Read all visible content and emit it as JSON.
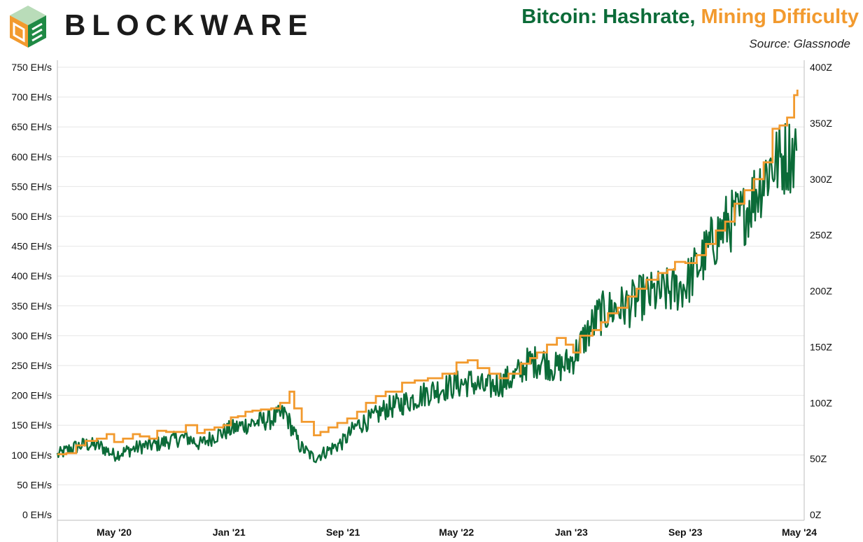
{
  "brand": {
    "name": "BLOCKWARE"
  },
  "header": {
    "title_part1": "Bitcoin: Hashrate, ",
    "title_part2": "Mining Difficulty",
    "source": "Source: Glassnode"
  },
  "colors": {
    "hashrate": "#0b6b38",
    "difficulty": "#f29a2e",
    "logo_orange": "#f29a2e",
    "logo_green": "#1f8a45"
  },
  "chart_data": {
    "type": "line",
    "title": "Bitcoin: Hashrate, Mining Difficulty",
    "grid": "horizontal",
    "x_range": [
      "2020-01-01",
      "2024-05-01"
    ],
    "x_ticks": [
      {
        "label": "May '20",
        "date": "2020-05-01"
      },
      {
        "label": "Jan '21",
        "date": "2021-01-01"
      },
      {
        "label": "Sep '21",
        "date": "2021-09-01"
      },
      {
        "label": "May '22",
        "date": "2022-05-01"
      },
      {
        "label": "Jan '23",
        "date": "2023-01-01"
      },
      {
        "label": "Sep '23",
        "date": "2023-09-01"
      },
      {
        "label": "May '24",
        "date": "2024-05-01"
      }
    ],
    "y_left": {
      "ylim": [
        0,
        750
      ],
      "unit": "EH/s",
      "ticks": [
        {
          "value": 0,
          "label": "0 EH/s"
        },
        {
          "value": 50,
          "label": "50 EH/s"
        },
        {
          "value": 100,
          "label": "100 EH/s"
        },
        {
          "value": 150,
          "label": "150 EH/s"
        },
        {
          "value": 200,
          "label": "200 EH/s"
        },
        {
          "value": 250,
          "label": "250 EH/s"
        },
        {
          "value": 300,
          "label": "300 EH/s"
        },
        {
          "value": 350,
          "label": "350 EH/s"
        },
        {
          "value": 400,
          "label": "400 EH/s"
        },
        {
          "value": 450,
          "label": "450 EH/s"
        },
        {
          "value": 500,
          "label": "500 EH/s"
        },
        {
          "value": 550,
          "label": "550 EH/s"
        },
        {
          "value": 600,
          "label": "600 EH/s"
        },
        {
          "value": 650,
          "label": "650 EH/s"
        },
        {
          "value": 700,
          "label": "700 EH/s"
        },
        {
          "value": 750,
          "label": "750 EH/s"
        }
      ]
    },
    "y_right": {
      "ylim": [
        0,
        400
      ],
      "unit": "Z",
      "ticks": [
        {
          "value": 0,
          "label": "0Z"
        },
        {
          "value": 50,
          "label": "50Z"
        },
        {
          "value": 100,
          "label": "100Z"
        },
        {
          "value": 150,
          "label": "150Z"
        },
        {
          "value": 200,
          "label": "200Z"
        },
        {
          "value": 250,
          "label": "250Z"
        },
        {
          "value": 300,
          "label": "300Z"
        },
        {
          "value": 350,
          "label": "350Z"
        },
        {
          "value": 400,
          "label": "400Z"
        }
      ]
    },
    "series": [
      {
        "name": "Hashrate",
        "axis": "left",
        "color": "#0b6b38",
        "points": [
          [
            "2020-01-01",
            100
          ],
          [
            "2020-02-01",
            112
          ],
          [
            "2020-03-01",
            118
          ],
          [
            "2020-04-01",
            115
          ],
          [
            "2020-05-01",
            100
          ],
          [
            "2020-06-01",
            108
          ],
          [
            "2020-07-01",
            115
          ],
          [
            "2020-08-01",
            118
          ],
          [
            "2020-09-01",
            125
          ],
          [
            "2020-10-01",
            130
          ],
          [
            "2020-11-01",
            118
          ],
          [
            "2020-12-01",
            132
          ],
          [
            "2021-01-01",
            142
          ],
          [
            "2021-02-01",
            150
          ],
          [
            "2021-03-01",
            155
          ],
          [
            "2021-04-01",
            160
          ],
          [
            "2021-05-01",
            170
          ],
          [
            "2021-06-01",
            115
          ],
          [
            "2021-07-01",
            95
          ],
          [
            "2021-08-01",
            108
          ],
          [
            "2021-09-01",
            122
          ],
          [
            "2021-10-01",
            150
          ],
          [
            "2021-11-01",
            160
          ],
          [
            "2021-12-01",
            178
          ],
          [
            "2022-01-01",
            185
          ],
          [
            "2022-02-01",
            195
          ],
          [
            "2022-03-01",
            205
          ],
          [
            "2022-04-01",
            212
          ],
          [
            "2022-05-01",
            218
          ],
          [
            "2022-06-01",
            222
          ],
          [
            "2022-07-01",
            212
          ],
          [
            "2022-08-01",
            220
          ],
          [
            "2022-09-01",
            230
          ],
          [
            "2022-10-01",
            255
          ],
          [
            "2022-11-01",
            258
          ],
          [
            "2022-12-01",
            245
          ],
          [
            "2023-01-01",
            258
          ],
          [
            "2023-02-01",
            300
          ],
          [
            "2023-03-01",
            335
          ],
          [
            "2023-04-01",
            345
          ],
          [
            "2023-05-01",
            350
          ],
          [
            "2023-06-01",
            365
          ],
          [
            "2023-07-01",
            370
          ],
          [
            "2023-08-01",
            375
          ],
          [
            "2023-09-01",
            385
          ],
          [
            "2023-10-01",
            420
          ],
          [
            "2023-11-01",
            460
          ],
          [
            "2023-12-01",
            490
          ],
          [
            "2024-01-01",
            500
          ],
          [
            "2024-02-01",
            545
          ],
          [
            "2024-03-01",
            585
          ],
          [
            "2024-04-01",
            600
          ],
          [
            "2024-04-25",
            610
          ]
        ]
      },
      {
        "name": "Mining Difficulty",
        "axis": "right",
        "color": "#f29a2e",
        "points": [
          [
            "2020-01-01",
            54
          ],
          [
            "2020-01-20",
            55
          ],
          [
            "2020-02-10",
            62
          ],
          [
            "2020-03-01",
            66
          ],
          [
            "2020-03-25",
            68
          ],
          [
            "2020-04-15",
            72
          ],
          [
            "2020-05-01",
            65
          ],
          [
            "2020-05-20",
            68
          ],
          [
            "2020-06-10",
            72
          ],
          [
            "2020-06-25",
            70
          ],
          [
            "2020-07-15",
            68
          ],
          [
            "2020-08-01",
            75
          ],
          [
            "2020-08-20",
            74
          ],
          [
            "2020-09-10",
            74
          ],
          [
            "2020-10-01",
            80
          ],
          [
            "2020-10-25",
            73
          ],
          [
            "2020-11-10",
            76
          ],
          [
            "2020-12-01",
            78
          ],
          [
            "2020-12-20",
            80
          ],
          [
            "2021-01-05",
            87
          ],
          [
            "2021-01-20",
            88
          ],
          [
            "2021-02-05",
            92
          ],
          [
            "2021-02-20",
            93
          ],
          [
            "2021-03-10",
            94
          ],
          [
            "2021-04-01",
            95
          ],
          [
            "2021-04-20",
            100
          ],
          [
            "2021-05-10",
            110
          ],
          [
            "2021-05-20",
            95
          ],
          [
            "2021-06-05",
            83
          ],
          [
            "2021-07-01",
            71
          ],
          [
            "2021-07-15",
            74
          ],
          [
            "2021-08-01",
            78
          ],
          [
            "2021-08-20",
            82
          ],
          [
            "2021-09-10",
            86
          ],
          [
            "2021-10-01",
            92
          ],
          [
            "2021-10-20",
            100
          ],
          [
            "2021-11-10",
            106
          ],
          [
            "2021-12-01",
            110
          ],
          [
            "2022-01-05",
            118
          ],
          [
            "2022-02-01",
            120
          ],
          [
            "2022-03-01",
            122
          ],
          [
            "2022-04-01",
            126
          ],
          [
            "2022-05-01",
            136
          ],
          [
            "2022-05-25",
            138
          ],
          [
            "2022-06-15",
            131
          ],
          [
            "2022-07-10",
            126
          ],
          [
            "2022-08-01",
            122
          ],
          [
            "2022-08-20",
            126
          ],
          [
            "2022-09-15",
            135
          ],
          [
            "2022-10-05",
            140
          ],
          [
            "2022-10-20",
            145
          ],
          [
            "2022-11-10",
            152
          ],
          [
            "2022-12-01",
            158
          ],
          [
            "2022-12-20",
            152
          ],
          [
            "2023-01-05",
            145
          ],
          [
            "2023-01-20",
            160
          ],
          [
            "2023-02-15",
            165
          ],
          [
            "2023-03-05",
            172
          ],
          [
            "2023-03-20",
            180
          ],
          [
            "2023-04-10",
            185
          ],
          [
            "2023-05-01",
            195
          ],
          [
            "2023-05-20",
            202
          ],
          [
            "2023-06-10",
            210
          ],
          [
            "2023-07-05",
            216
          ],
          [
            "2023-07-25",
            219
          ],
          [
            "2023-08-10",
            226
          ],
          [
            "2023-09-01",
            225
          ],
          [
            "2023-09-25",
            232
          ],
          [
            "2023-10-15",
            242
          ],
          [
            "2023-11-05",
            254
          ],
          [
            "2023-11-25",
            262
          ],
          [
            "2023-12-15",
            278
          ],
          [
            "2024-01-05",
            290
          ],
          [
            "2024-01-25",
            300
          ],
          [
            "2024-02-15",
            315
          ],
          [
            "2024-03-05",
            345
          ],
          [
            "2024-03-20",
            348
          ],
          [
            "2024-04-05",
            355
          ],
          [
            "2024-04-20",
            375
          ],
          [
            "2024-04-27",
            380
          ]
        ]
      }
    ]
  }
}
